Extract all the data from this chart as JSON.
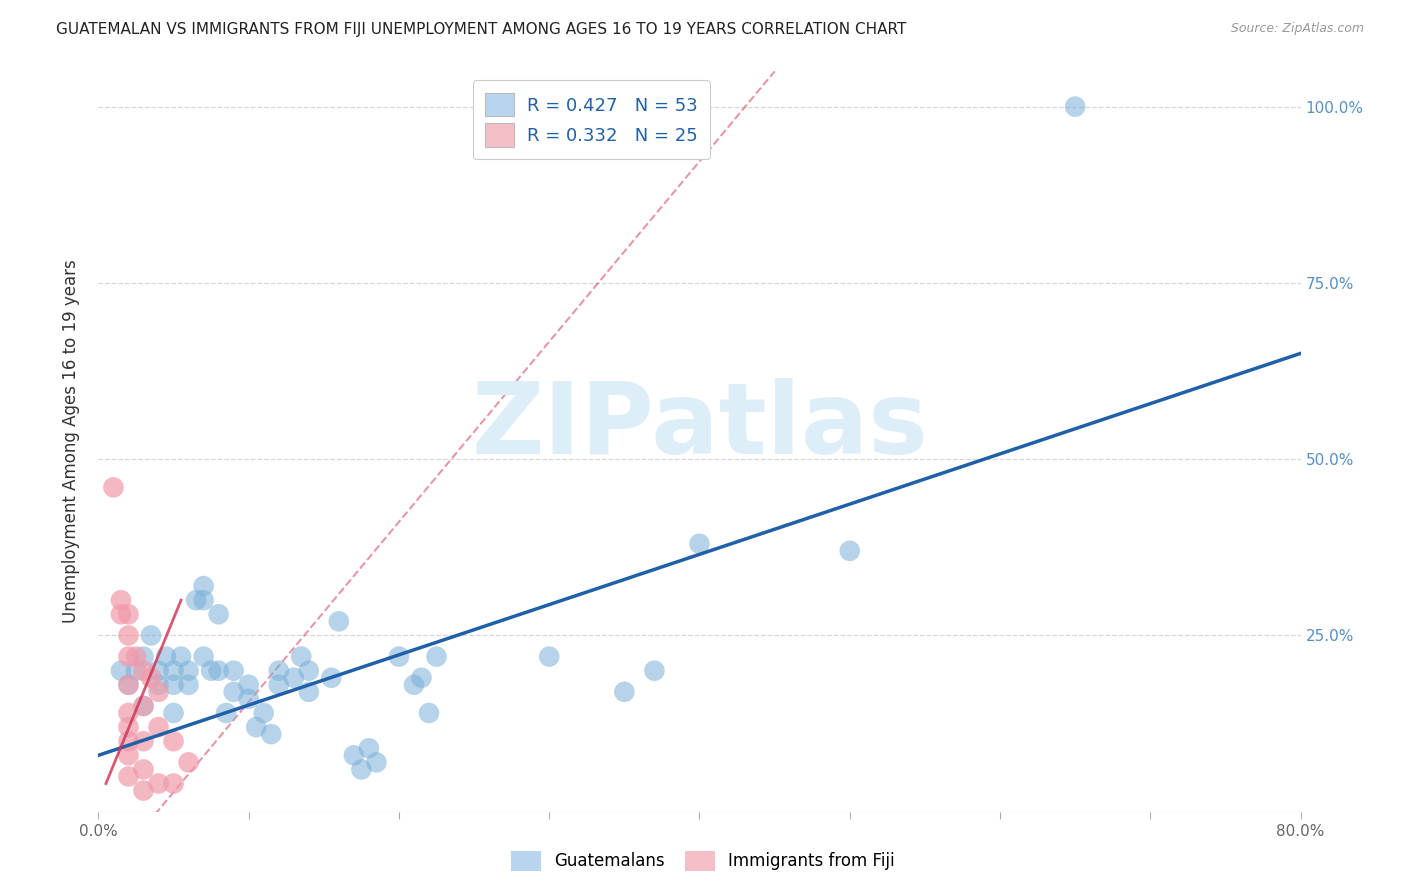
{
  "title": "GUATEMALAN VS IMMIGRANTS FROM FIJI UNEMPLOYMENT AMONG AGES 16 TO 19 YEARS CORRELATION CHART",
  "source": "Source: ZipAtlas.com",
  "ylabel": "Unemployment Among Ages 16 to 19 years",
  "xlim": [
    0.0,
    0.8
  ],
  "ylim": [
    0.0,
    1.05
  ],
  "xtick_positions": [
    0.0,
    0.1,
    0.2,
    0.3,
    0.4,
    0.5,
    0.6,
    0.7,
    0.8
  ],
  "xticklabels": [
    "0.0%",
    "",
    "",
    "",
    "",
    "",
    "",
    "",
    "80.0%"
  ],
  "ytick_positions": [
    0.0,
    0.25,
    0.5,
    0.75,
    1.0
  ],
  "yticklabels_right": [
    "",
    "25.0%",
    "50.0%",
    "75.0%",
    "100.0%"
  ],
  "legend1_label": "R = 0.427   N = 53",
  "legend2_label": "R = 0.332   N = 25",
  "blue_light": "#b8d4ee",
  "pink_light": "#f5bfc8",
  "blue_scatter": "#7ab0d8",
  "pink_scatter": "#f09aaa",
  "trendline_blue": "#2060a8",
  "trendline_pink": "#cc3050",
  "right_axis_color": "#5590c8",
  "watermark": "ZIPatlas",
  "watermark_color": "#ddeef8",
  "blue_points": [
    [
      0.015,
      0.2
    ],
    [
      0.02,
      0.18
    ],
    [
      0.025,
      0.2
    ],
    [
      0.03,
      0.15
    ],
    [
      0.03,
      0.22
    ],
    [
      0.035,
      0.25
    ],
    [
      0.04,
      0.18
    ],
    [
      0.04,
      0.2
    ],
    [
      0.045,
      0.22
    ],
    [
      0.05,
      0.18
    ],
    [
      0.05,
      0.2
    ],
    [
      0.05,
      0.14
    ],
    [
      0.055,
      0.22
    ],
    [
      0.06,
      0.2
    ],
    [
      0.06,
      0.18
    ],
    [
      0.065,
      0.3
    ],
    [
      0.07,
      0.3
    ],
    [
      0.07,
      0.32
    ],
    [
      0.07,
      0.22
    ],
    [
      0.075,
      0.2
    ],
    [
      0.08,
      0.28
    ],
    [
      0.08,
      0.2
    ],
    [
      0.085,
      0.14
    ],
    [
      0.09,
      0.2
    ],
    [
      0.09,
      0.17
    ],
    [
      0.1,
      0.18
    ],
    [
      0.1,
      0.16
    ],
    [
      0.105,
      0.12
    ],
    [
      0.11,
      0.14
    ],
    [
      0.115,
      0.11
    ],
    [
      0.12,
      0.2
    ],
    [
      0.12,
      0.18
    ],
    [
      0.13,
      0.19
    ],
    [
      0.135,
      0.22
    ],
    [
      0.14,
      0.2
    ],
    [
      0.14,
      0.17
    ],
    [
      0.155,
      0.19
    ],
    [
      0.16,
      0.27
    ],
    [
      0.17,
      0.08
    ],
    [
      0.175,
      0.06
    ],
    [
      0.18,
      0.09
    ],
    [
      0.185,
      0.07
    ],
    [
      0.2,
      0.22
    ],
    [
      0.21,
      0.18
    ],
    [
      0.215,
      0.19
    ],
    [
      0.22,
      0.14
    ],
    [
      0.225,
      0.22
    ],
    [
      0.3,
      0.22
    ],
    [
      0.35,
      0.17
    ],
    [
      0.37,
      0.2
    ],
    [
      0.4,
      0.38
    ],
    [
      0.5,
      0.37
    ],
    [
      0.65,
      1.0
    ]
  ],
  "pink_points": [
    [
      0.01,
      0.46
    ],
    [
      0.015,
      0.3
    ],
    [
      0.015,
      0.28
    ],
    [
      0.02,
      0.28
    ],
    [
      0.02,
      0.25
    ],
    [
      0.02,
      0.22
    ],
    [
      0.02,
      0.18
    ],
    [
      0.02,
      0.14
    ],
    [
      0.02,
      0.12
    ],
    [
      0.02,
      0.1
    ],
    [
      0.02,
      0.08
    ],
    [
      0.02,
      0.05
    ],
    [
      0.025,
      0.22
    ],
    [
      0.03,
      0.2
    ],
    [
      0.03,
      0.15
    ],
    [
      0.03,
      0.1
    ],
    [
      0.03,
      0.06
    ],
    [
      0.03,
      0.03
    ],
    [
      0.035,
      0.19
    ],
    [
      0.04,
      0.17
    ],
    [
      0.04,
      0.12
    ],
    [
      0.04,
      0.04
    ],
    [
      0.05,
      0.1
    ],
    [
      0.05,
      0.04
    ],
    [
      0.06,
      0.07
    ]
  ],
  "blue_trend": [
    0.0,
    0.08,
    0.8,
    0.65
  ],
  "pink_trend_solid": [
    0.005,
    0.04,
    0.055,
    0.3
  ],
  "pink_trend_dashed": [
    0.0,
    -0.1,
    0.45,
    1.05
  ]
}
